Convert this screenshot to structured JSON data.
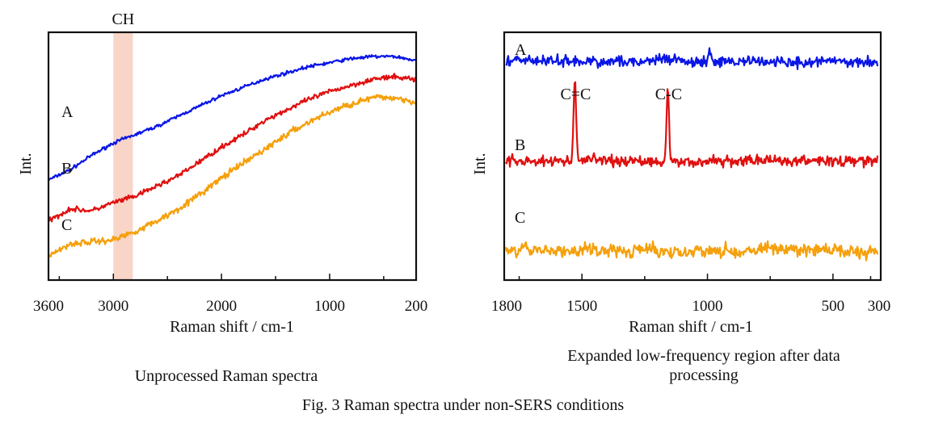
{
  "figure": {
    "caption": "Fig. 3   Raman spectra under non-SERS conditions"
  },
  "chart_data": [
    {
      "type": "line",
      "subtitle": "Unprocessed Raman spectra",
      "xlabel": "Raman shift / cm-1",
      "ylabel": "Int.",
      "xlim": [
        3600,
        200
      ],
      "x_ticks": [
        3600,
        3000,
        2000,
        1000,
        200
      ],
      "grid": false,
      "region_label": "CH",
      "highlight_band": [
        3000,
        2820
      ],
      "highlight_color": "#f9d5c8",
      "series": [
        {
          "name": "A",
          "color": "#0a16e6",
          "x": [
            3600,
            3400,
            3200,
            3000,
            2800,
            2600,
            2400,
            2200,
            2000,
            1800,
            1600,
            1400,
            1200,
            1000,
            800,
            600,
            400,
            200
          ],
          "y": [
            0.4,
            0.45,
            0.52,
            0.58,
            0.62,
            0.66,
            0.71,
            0.76,
            0.81,
            0.85,
            0.89,
            0.92,
            0.95,
            0.97,
            0.99,
            1.0,
            1.0,
            0.98
          ]
        },
        {
          "name": "B",
          "color": "#e01010",
          "x": [
            3600,
            3400,
            3200,
            3000,
            2800,
            2600,
            2400,
            2200,
            2000,
            1800,
            1600,
            1400,
            1200,
            1000,
            800,
            600,
            400,
            200
          ],
          "y": [
            0.2,
            0.26,
            0.25,
            0.29,
            0.32,
            0.37,
            0.42,
            0.49,
            0.56,
            0.62,
            0.69,
            0.74,
            0.79,
            0.83,
            0.86,
            0.89,
            0.9,
            0.89
          ]
        },
        {
          "name": "C",
          "color": "#f5a00c",
          "x": [
            3600,
            3400,
            3200,
            3000,
            2800,
            2600,
            2400,
            2200,
            2000,
            1800,
            1600,
            1400,
            1200,
            1000,
            800,
            600,
            400,
            200
          ],
          "y": [
            0.03,
            0.09,
            0.1,
            0.11,
            0.15,
            0.2,
            0.26,
            0.33,
            0.41,
            0.48,
            0.55,
            0.62,
            0.68,
            0.73,
            0.77,
            0.8,
            0.8,
            0.78
          ]
        }
      ]
    },
    {
      "type": "line",
      "subtitle": "Expanded low-frequency region after data processing",
      "xlabel": "Raman shift / cm-1",
      "ylabel": "Int.",
      "xlim": [
        1800,
        300
      ],
      "x_ticks": [
        1800,
        1500,
        1000,
        500,
        300
      ],
      "grid": false,
      "annotations": [
        {
          "text": "C=C",
          "x": 1525
        },
        {
          "text": "C-C",
          "x": 1155
        }
      ],
      "series": [
        {
          "name": "A",
          "color": "#0a16e6",
          "baseline": 0.8,
          "peaks": [
            {
              "x": 990,
              "height": 0.04
            }
          ]
        },
        {
          "name": "B",
          "color": "#e01010",
          "baseline": 0.42,
          "peaks": [
            {
              "x": 1525,
              "height": 0.32
            },
            {
              "x": 1155,
              "height": 0.28
            }
          ]
        },
        {
          "name": "C",
          "color": "#f5a00c",
          "baseline": 0.08,
          "peaks": []
        }
      ]
    }
  ]
}
